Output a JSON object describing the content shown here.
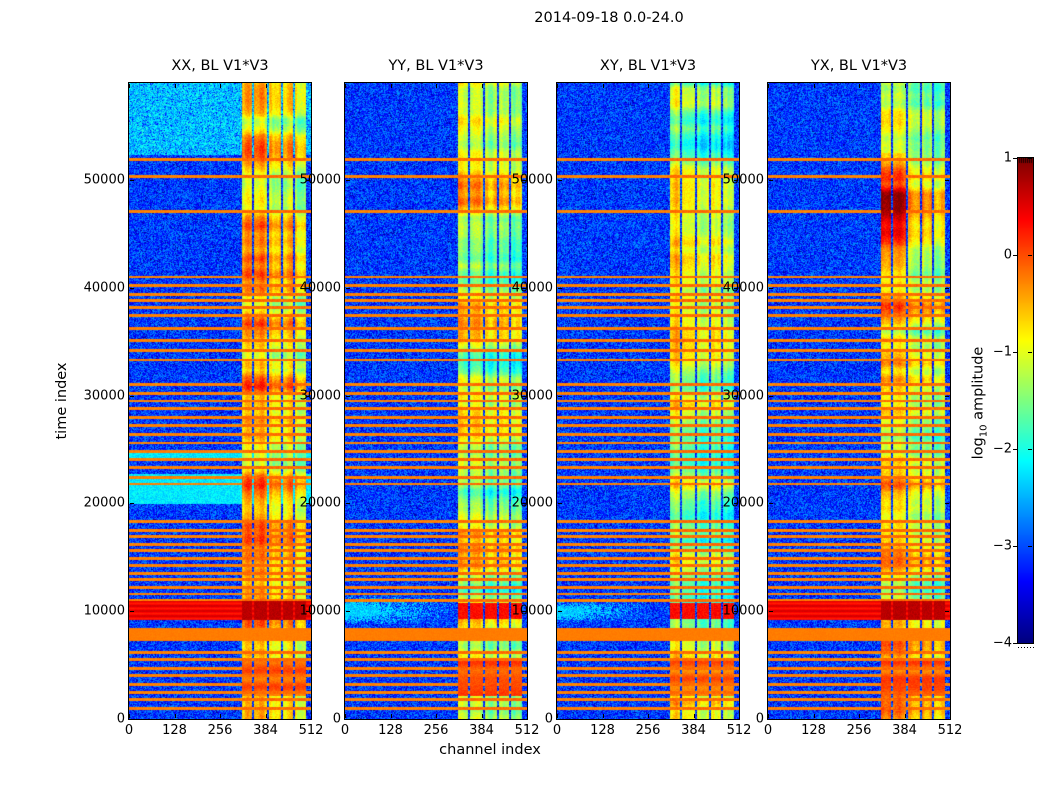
{
  "chart_data": {
    "type": "heatmap",
    "title": "2014-09-18 0.0-24.0",
    "xlabel": "channel index",
    "ylabel": "time index",
    "x_range": [
      0,
      512
    ],
    "y_range": [
      0,
      59000
    ],
    "x_ticks": [
      0,
      128,
      256,
      384,
      512
    ],
    "y_ticks": [
      0,
      10000,
      20000,
      30000,
      40000,
      50000
    ],
    "grid": false,
    "colormap": "jet",
    "value_range": [
      -4,
      1
    ],
    "colorbar": {
      "label_prefix": "log",
      "label_subscript": "10",
      "label_suffix": " amplitude",
      "tick_labels": [
        "1",
        "0",
        "−1",
        "−2",
        "−3",
        "−4"
      ],
      "tick_values": [
        1,
        0,
        -1,
        -2,
        -3,
        -4
      ]
    },
    "panels": [
      {
        "label": "XX, BL V1*V3",
        "seed": 101,
        "band_gain": 0.12,
        "features": {
          "top_light": true,
          "red_band": true,
          "cyan_bands": [
            [
              19900,
              22700
            ],
            [
              24200,
              25000
            ]
          ],
          "mid_blobs": [
            [
              32500,
              35800
            ]
          ]
        }
      },
      {
        "label": "YY, BL V1*V3",
        "seed": 202,
        "band_gain": -0.12,
        "features": {
          "wedge": [
            8800,
            11400,
            310
          ]
        }
      },
      {
        "label": "XY, BL V1*V3",
        "seed": 303,
        "band_gain": -0.5,
        "features": {
          "wedge": [
            9000,
            10900,
            260
          ]
        }
      },
      {
        "label": "YX, BL V1*V3",
        "seed": 404,
        "band_gain": 0.22,
        "features": {
          "red_band": true,
          "top_blobs": [
            41000,
            52500
          ]
        }
      }
    ],
    "background_level": -3.55,
    "sub_bands": [
      [
        318,
        346,
        -0.95
      ],
      [
        352,
        389,
        -1.0
      ],
      [
        394,
        427,
        -1.3
      ],
      [
        433,
        462,
        -1.2
      ],
      [
        467,
        497,
        -1.45
      ]
    ],
    "rfi_lines": [
      51900,
      50300,
      47100,
      41000,
      40200,
      39400,
      38800,
      38200,
      37400,
      36200,
      35100,
      34200,
      33300,
      31000,
      30200,
      29500,
      28800,
      28000,
      27200,
      26400,
      25600,
      24800,
      24100,
      23300,
      22400,
      21800,
      18300,
      17500,
      16900,
      16200,
      15600,
      14900,
      14200,
      13500,
      12900,
      12200,
      11600,
      11000,
      6200,
      5500,
      4700,
      4000,
      3200,
      2500,
      1800,
      1000
    ],
    "rfi_level": -0.35,
    "solid_band": {
      "t0": 7250,
      "t1": 8400,
      "level": -0.27
    },
    "red_band": {
      "t0": 9200,
      "t1": 10950,
      "level": 0.38,
      "band_level": 0.62
    },
    "band_red_event": {
      "t0": 9300,
      "t1": 10800,
      "level": 0.18
    },
    "bottom_blobs": {
      "t0": 2100,
      "t1": 5400,
      "level": -0.5
    }
  }
}
